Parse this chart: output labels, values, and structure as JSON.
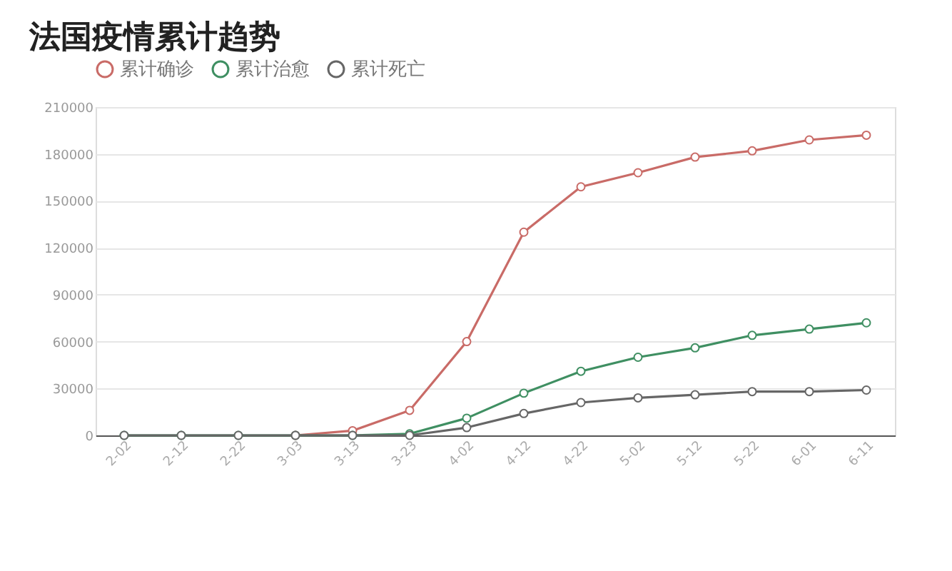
{
  "chart_data": {
    "type": "line",
    "title": "法国疫情累计趋势",
    "categories": [
      "2-02",
      "2-12",
      "2-22",
      "3-03",
      "3-13",
      "3-23",
      "4-02",
      "4-12",
      "4-22",
      "5-02",
      "5-12",
      "5-22",
      "6-01",
      "6-11"
    ],
    "series": [
      {
        "name": "累计确诊",
        "color": "#c96b67",
        "values": [
          null,
          null,
          null,
          0,
          3000,
          16000,
          60000,
          130000,
          159000,
          168000,
          178000,
          182000,
          189000,
          192000
        ]
      },
      {
        "name": "累计治愈",
        "color": "#3f8f62",
        "values": [
          0,
          0,
          0,
          0,
          0,
          1000,
          11000,
          27000,
          41000,
          50000,
          56000,
          64000,
          68000,
          72000
        ]
      },
      {
        "name": "累计死亡",
        "color": "#666666",
        "values": [
          0,
          0,
          0,
          0,
          0,
          0,
          5000,
          14000,
          21000,
          24000,
          26000,
          28000,
          28000,
          29000
        ]
      }
    ],
    "ylim": [
      0,
      210000
    ],
    "yticks": [
      0,
      30000,
      60000,
      90000,
      120000,
      150000,
      180000,
      210000
    ],
    "grid": "y",
    "legend": "top left",
    "marker": "circle",
    "line_style": "solid"
  }
}
